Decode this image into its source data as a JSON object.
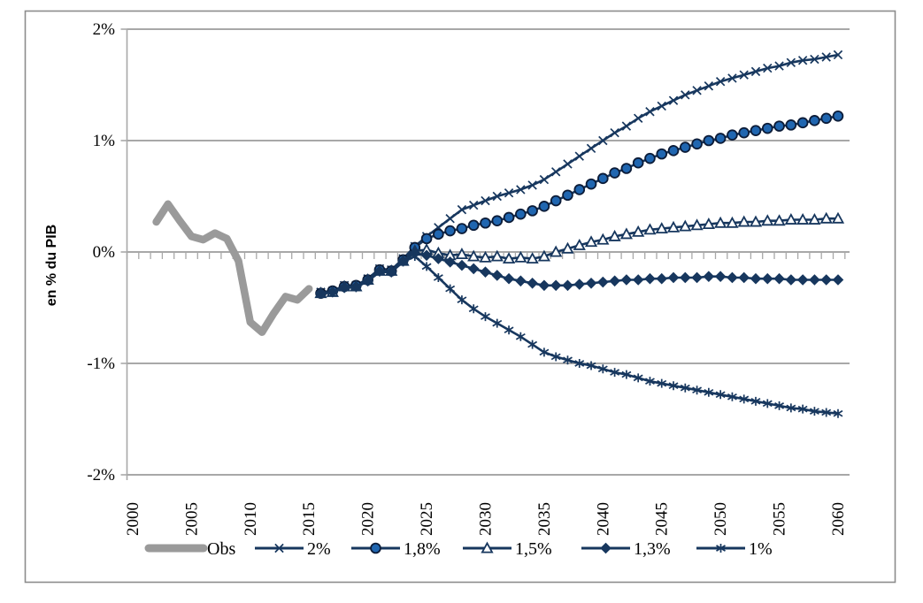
{
  "figure": {
    "background": "#ffffff",
    "border_color": "#8c8c8c"
  },
  "colors": {
    "navy_line": "#17375e",
    "circle_fill": "#2066b0",
    "marker_outline": "#0c1c38",
    "obs_gray": "#9a9a9a",
    "gridline_gray": "#a8a8a8",
    "tick_text": "#000000"
  },
  "chart_data": {
    "type": "line",
    "title": "",
    "xlabel": "",
    "ylabel": "en % du PIB",
    "xlim": [
      2000,
      2061
    ],
    "ylim": [
      -2,
      2
    ],
    "grid": "horizontal",
    "legend_position": "bottom",
    "yticks": [
      {
        "label": "2%",
        "value": 2
      },
      {
        "label": "1%",
        "value": 1
      },
      {
        "label": "0%",
        "value": 0
      },
      {
        "label": "-1%",
        "value": -1
      },
      {
        "label": "-2%",
        "value": -2
      }
    ],
    "xticks": [
      2000,
      2005,
      2010,
      2015,
      2020,
      2025,
      2030,
      2035,
      2040,
      2045,
      2050,
      2055,
      2060
    ],
    "series": [
      {
        "name": "Obs",
        "marker": "none",
        "color": "#9a9a9a",
        "line_width": 8.5,
        "x_start": 2002,
        "values": [
          0.27,
          0.43,
          0.28,
          0.14,
          0.11,
          0.17,
          0.12,
          -0.08,
          -0.63,
          -0.72,
          -0.55,
          -0.4,
          -0.43,
          -0.33
        ]
      },
      {
        "name": "2%",
        "marker": "x",
        "color": "#17375e",
        "line_width": 2.6,
        "x_start": 2016,
        "values": [
          -0.36,
          -0.35,
          -0.3,
          -0.3,
          -0.24,
          -0.15,
          -0.16,
          -0.06,
          0.05,
          0.14,
          0.22,
          0.3,
          0.38,
          0.42,
          0.46,
          0.5,
          0.53,
          0.56,
          0.6,
          0.65,
          0.72,
          0.79,
          0.86,
          0.93,
          1.0,
          1.07,
          1.13,
          1.2,
          1.26,
          1.31,
          1.36,
          1.41,
          1.45,
          1.49,
          1.53,
          1.56,
          1.59,
          1.62,
          1.65,
          1.67,
          1.7,
          1.72,
          1.73,
          1.75,
          1.77
        ]
      },
      {
        "name": "1,8%",
        "marker": "circle",
        "color": "#17375e",
        "line_width": 2.6,
        "x_start": 2016,
        "values": [
          -0.37,
          -0.35,
          -0.31,
          -0.3,
          -0.25,
          -0.16,
          -0.17,
          -0.07,
          0.04,
          0.12,
          0.16,
          0.19,
          0.21,
          0.24,
          0.26,
          0.28,
          0.31,
          0.34,
          0.37,
          0.41,
          0.46,
          0.51,
          0.56,
          0.61,
          0.66,
          0.71,
          0.75,
          0.8,
          0.84,
          0.88,
          0.91,
          0.94,
          0.97,
          1.0,
          1.02,
          1.05,
          1.07,
          1.09,
          1.11,
          1.13,
          1.14,
          1.16,
          1.18,
          1.2,
          1.22
        ]
      },
      {
        "name": "1,5%",
        "marker": "triangle-open",
        "color": "#17375e",
        "line_width": 2.6,
        "x_start": 2016,
        "values": [
          -0.37,
          -0.36,
          -0.31,
          -0.31,
          -0.25,
          -0.17,
          -0.17,
          -0.08,
          0.01,
          0.02,
          -0.01,
          -0.03,
          -0.02,
          -0.04,
          -0.05,
          -0.04,
          -0.06,
          -0.05,
          -0.06,
          -0.04,
          0.0,
          0.03,
          0.06,
          0.09,
          0.11,
          0.14,
          0.16,
          0.18,
          0.2,
          0.21,
          0.22,
          0.23,
          0.24,
          0.25,
          0.26,
          0.26,
          0.27,
          0.27,
          0.28,
          0.28,
          0.29,
          0.29,
          0.29,
          0.3,
          0.3
        ]
      },
      {
        "name": "1,3%",
        "marker": "diamond",
        "color": "#17375e",
        "line_width": 2.6,
        "x_start": 2016,
        "values": [
          -0.37,
          -0.36,
          -0.32,
          -0.31,
          -0.26,
          -0.17,
          -0.18,
          -0.08,
          -0.01,
          -0.03,
          -0.06,
          -0.09,
          -0.12,
          -0.15,
          -0.18,
          -0.21,
          -0.24,
          -0.26,
          -0.28,
          -0.3,
          -0.3,
          -0.3,
          -0.29,
          -0.28,
          -0.27,
          -0.26,
          -0.25,
          -0.25,
          -0.24,
          -0.24,
          -0.23,
          -0.23,
          -0.23,
          -0.22,
          -0.22,
          -0.23,
          -0.23,
          -0.24,
          -0.24,
          -0.24,
          -0.25,
          -0.25,
          -0.25,
          -0.25,
          -0.25
        ]
      },
      {
        "name": "1%",
        "marker": "asterisk",
        "color": "#17375e",
        "line_width": 2.6,
        "x_start": 2016,
        "values": [
          -0.38,
          -0.36,
          -0.32,
          -0.32,
          -0.26,
          -0.18,
          -0.18,
          -0.09,
          -0.04,
          -0.13,
          -0.23,
          -0.33,
          -0.43,
          -0.51,
          -0.58,
          -0.64,
          -0.7,
          -0.76,
          -0.83,
          -0.9,
          -0.94,
          -0.97,
          -1.0,
          -1.02,
          -1.05,
          -1.08,
          -1.1,
          -1.13,
          -1.16,
          -1.18,
          -1.2,
          -1.22,
          -1.24,
          -1.26,
          -1.28,
          -1.3,
          -1.32,
          -1.34,
          -1.36,
          -1.38,
          -1.4,
          -1.41,
          -1.43,
          -1.44,
          -1.45
        ]
      }
    ],
    "legend_labels": [
      "Obs",
      "2%",
      "1,8%",
      "1,5%",
      "1,3%",
      "1%"
    ]
  }
}
